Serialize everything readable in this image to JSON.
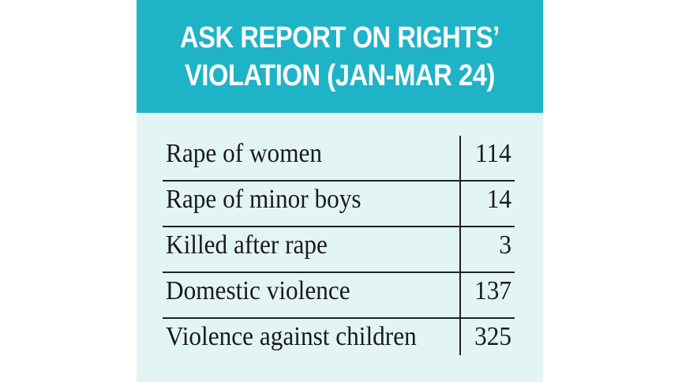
{
  "chart_data": {
    "type": "table",
    "title_lines": [
      "ASK REPORT ON RIGHTS’",
      "VIOLATION (JAN-MAR 24)"
    ],
    "categories": [
      "Rape of women",
      "Rape of minor boys",
      "Killed after rape",
      "Domestic violence",
      "Violence against children"
    ],
    "values": [
      114,
      14,
      3,
      137,
      325
    ]
  },
  "colors": {
    "header_bg": "#1fb3c7",
    "body_bg": "#e3f4f4",
    "text": "#1a1a1a"
  }
}
